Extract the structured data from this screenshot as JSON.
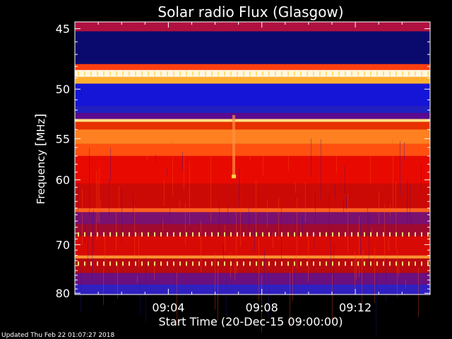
{
  "chart_data": {
    "type": "heatmap",
    "title": "Solar radio Flux (Glasgow)",
    "ylabel_prefix": "Frequency ",
    "ylabel_unit": "MHz",
    "xlabel": "Start Time (20-Dec-15 09:00:00)",
    "x_range_minutes": [
      0,
      15.2
    ],
    "y_range_mhz": [
      44.5,
      80.3
    ],
    "y_ticks": [
      {
        "value": 45,
        "label": "45"
      },
      {
        "value": 50,
        "label": "50"
      },
      {
        "value": 55,
        "label": "55"
      },
      {
        "value": 60,
        "label": "60"
      },
      {
        "value": 70,
        "label": "70"
      },
      {
        "value": 80,
        "label": "80"
      }
    ],
    "x_ticks": [
      {
        "value": 4,
        "label": "09:04"
      },
      {
        "value": 8,
        "label": "09:08"
      },
      {
        "value": 12,
        "label": "09:12"
      }
    ],
    "colors": {
      "dark_blue": "#0b0b5a",
      "blue": "#1a1ae6",
      "purple": "#7a1a8c",
      "dark_red": "#a0000a",
      "red": "#e80a00",
      "orange": "#ff6a00",
      "yellow": "#ffd040",
      "white": "#fff8e0"
    },
    "bands": [
      {
        "from": 44.5,
        "to": 45.2,
        "color": "#b01040"
      },
      {
        "from": 45.2,
        "to": 47.8,
        "color": "#0a0a6e"
      },
      {
        "from": 47.8,
        "to": 48.3,
        "color": "#ff4010"
      },
      {
        "from": 48.3,
        "to": 48.9,
        "color": "#fff8e0"
      },
      {
        "from": 48.9,
        "to": 49.5,
        "color": "#ffb030"
      },
      {
        "from": 49.5,
        "to": 51.6,
        "color": "#1515d8"
      },
      {
        "from": 51.6,
        "to": 52.3,
        "color": "#2020c0"
      },
      {
        "from": 52.3,
        "to": 52.9,
        "color": "#5a0a90"
      },
      {
        "from": 52.9,
        "to": 53.2,
        "color": "#ffe080"
      },
      {
        "from": 53.2,
        "to": 54.0,
        "color": "#e83000"
      },
      {
        "from": 54.0,
        "to": 55.6,
        "color": "#ff8020"
      },
      {
        "from": 55.6,
        "to": 57.0,
        "color": "#ff5010"
      },
      {
        "from": 57.0,
        "to": 60.5,
        "color": "#e80a00"
      },
      {
        "from": 60.5,
        "to": 64.0,
        "color": "#cc0a05"
      },
      {
        "from": 64.0,
        "to": 64.6,
        "color": "#ff6020"
      },
      {
        "from": 64.6,
        "to": 66.5,
        "color": "#7a1070"
      },
      {
        "from": 66.5,
        "to": 68.5,
        "color": "#a00a30"
      },
      {
        "from": 68.5,
        "to": 72.0,
        "color": "#d80a05"
      },
      {
        "from": 72.0,
        "to": 72.6,
        "color": "#ff9030"
      },
      {
        "from": 72.6,
        "to": 75.5,
        "color": "#b80a10"
      },
      {
        "from": 75.5,
        "to": 78.0,
        "color": "#6a1080"
      },
      {
        "from": 78.0,
        "to": 80.3,
        "color": "#3020c0"
      }
    ],
    "spike_rows_mhz": [
      48.6,
      68.2,
      73.6
    ],
    "event": {
      "time_minutes": 6.8,
      "from_mhz": 52.5,
      "to_mhz": 59.6
    },
    "grid": false
  },
  "footer": {
    "updated_text": "Updated Thu Feb 22 01:07:27 2018"
  }
}
